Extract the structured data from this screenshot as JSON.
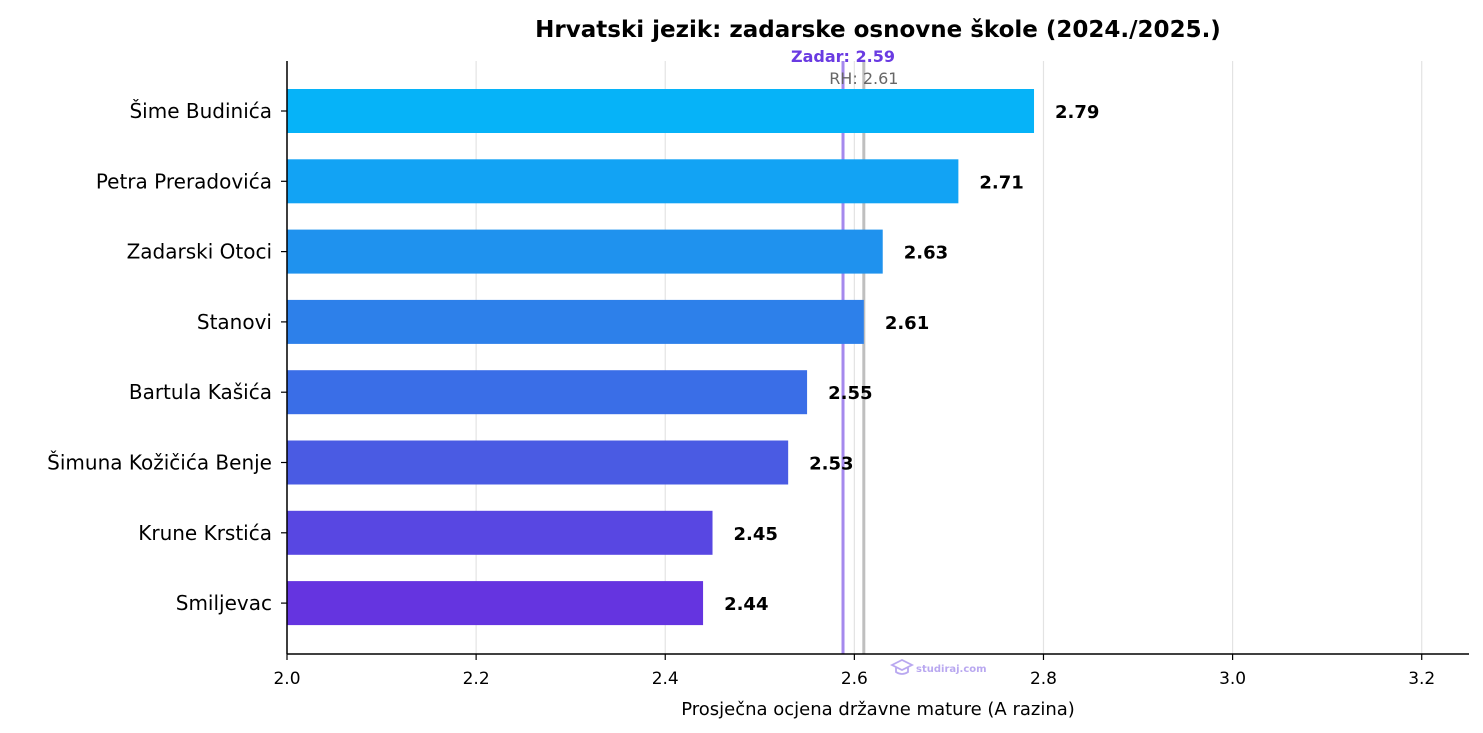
{
  "chart_data": {
    "type": "bar",
    "orientation": "horizontal",
    "title": "Hrvatski jezik: zadarske osnovne škole (2024./2025.)",
    "xlabel": "Prosječna ocjena državne mature (A razina)",
    "ylabel": "",
    "xlim": [
      2.0,
      3.25
    ],
    "xticks": [
      2.0,
      2.2,
      2.4,
      2.6,
      2.8,
      3.0,
      3.2
    ],
    "xtick_labels": [
      "2.0",
      "2.2",
      "2.4",
      "2.6",
      "2.8",
      "3.0",
      "3.2"
    ],
    "grid": "vertical",
    "categories": [
      "Šime Budinića",
      "Petra Preradovića",
      "Zadarski Otoci",
      "Stanovi",
      "Bartula Kašića",
      "Šimuna Kožičića Benje",
      "Krune Krstića",
      "Smiljevac"
    ],
    "values": [
      2.79,
      2.71,
      2.63,
      2.61,
      2.55,
      2.53,
      2.45,
      2.44
    ],
    "value_labels": [
      "2.79",
      "2.71",
      "2.63",
      "2.61",
      "2.55",
      "2.53",
      "2.45",
      "2.44"
    ],
    "colors": [
      "#06b3f8",
      "#12a3f4",
      "#1f92ee",
      "#2d80ea",
      "#3a6ee7",
      "#4a5be3",
      "#5847e2",
      "#6534e0"
    ],
    "reference_lines": [
      {
        "label": "Zadar: 2.59",
        "value": 2.588,
        "color": "#6a3be2"
      },
      {
        "label": "RH: 2.61",
        "value": 2.61,
        "color": "#b5b5b5"
      }
    ]
  },
  "watermark": {
    "text": "studiraj.com"
  }
}
